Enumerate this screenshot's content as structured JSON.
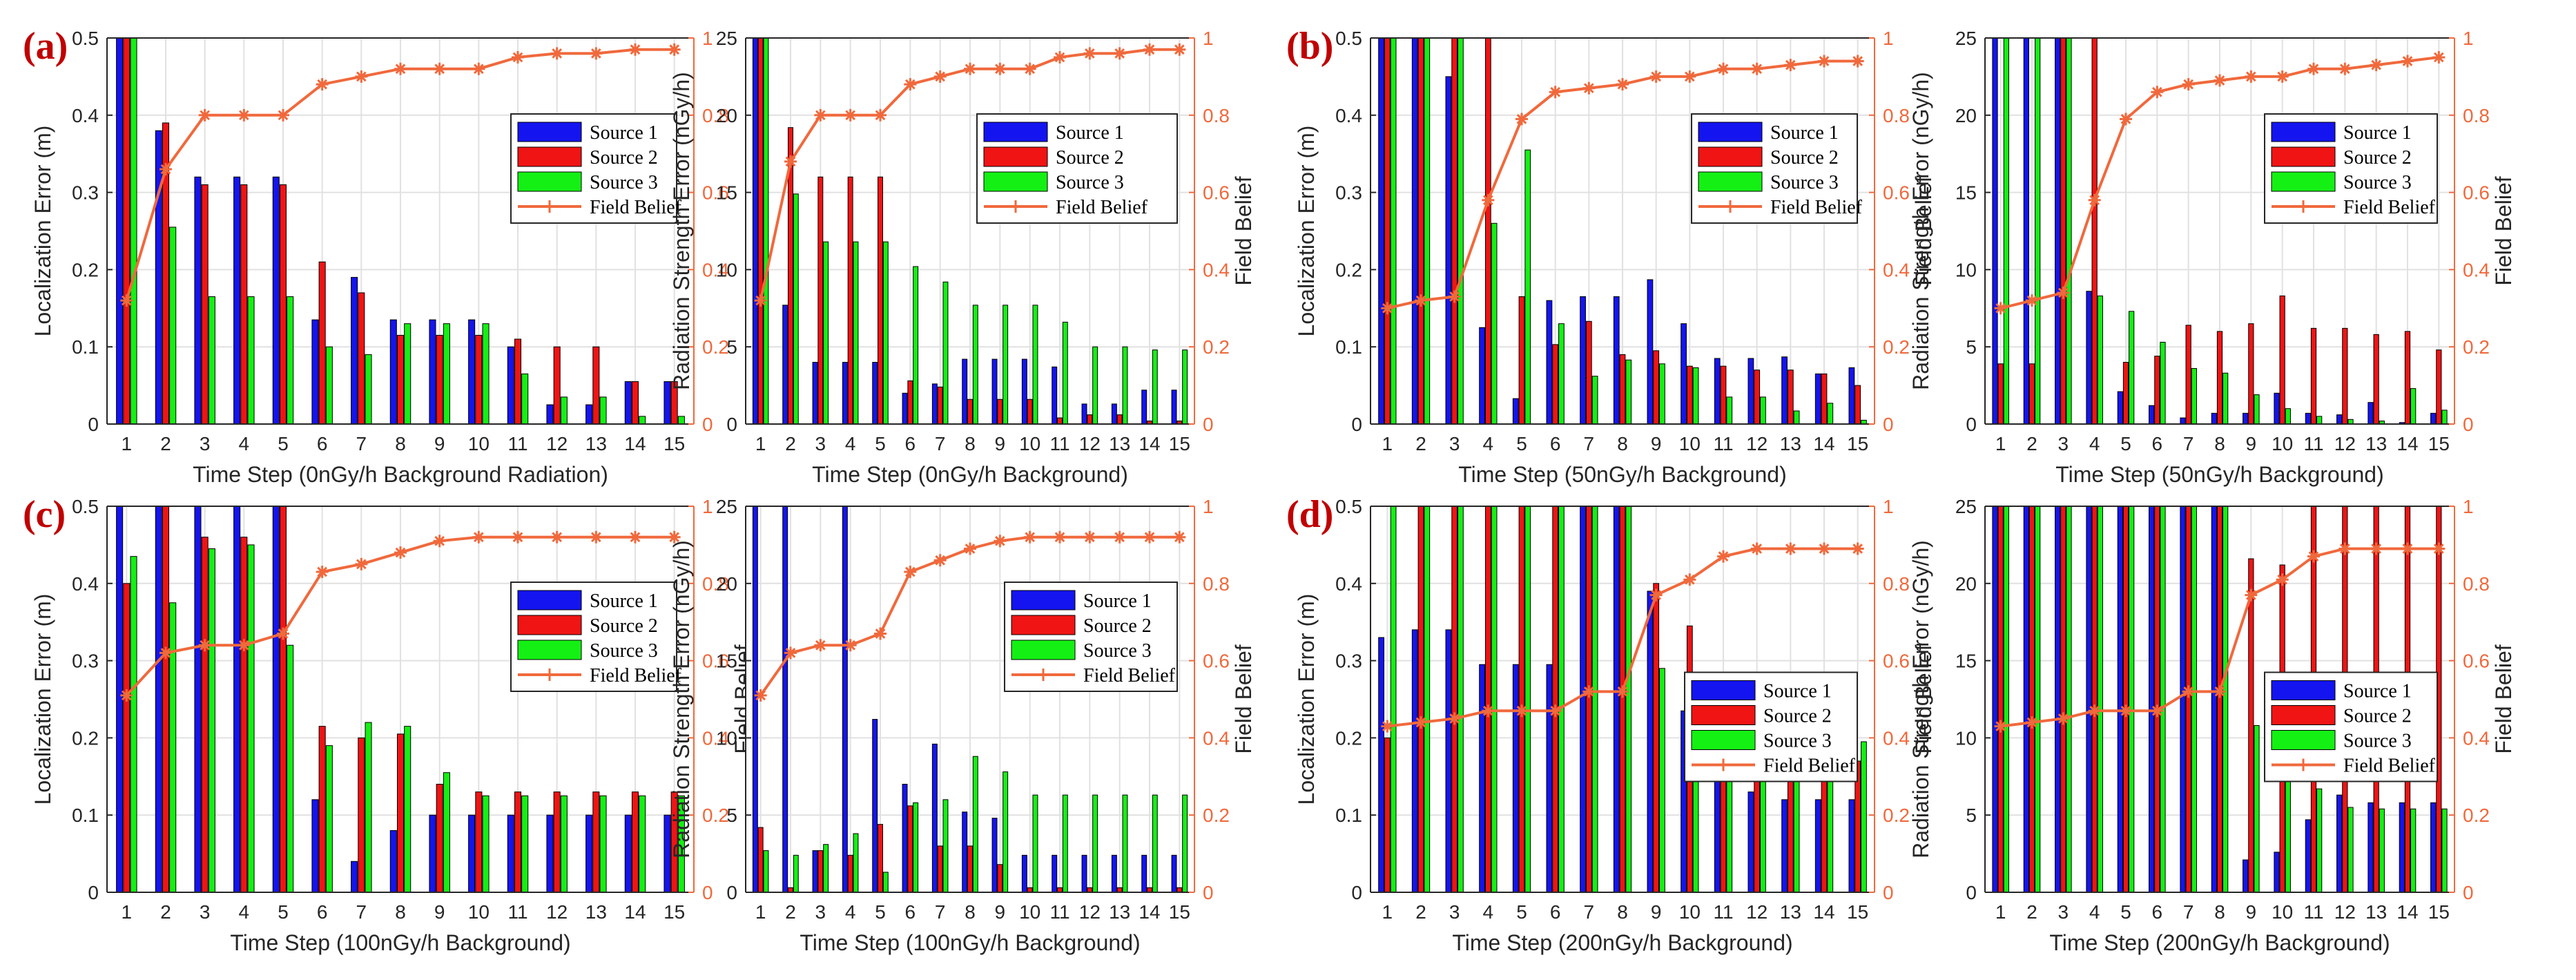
{
  "colors": {
    "source1": "#1414f0",
    "source2": "#f01414",
    "source3": "#14f014",
    "belief": "#f0693c",
    "grid": "#e1e1e1",
    "axis": "#262626",
    "tag": "#c00000"
  },
  "chart_data": [
    {
      "type": "bar",
      "panel_tag": "(a)",
      "categories": [
        "1",
        "2",
        "3",
        "4",
        "5",
        "6",
        "7",
        "8",
        "9",
        "10",
        "11",
        "12",
        "13",
        "14",
        "15"
      ],
      "series": [
        {
          "name": "Source 1",
          "values": [
            0.5,
            0.38,
            0.32,
            0.32,
            0.32,
            0.135,
            0.19,
            0.135,
            0.135,
            0.135,
            0.1,
            0.025,
            0.025,
            0.055,
            0.055
          ]
        },
        {
          "name": "Source 2",
          "values": [
            0.5,
            0.39,
            0.31,
            0.31,
            0.31,
            0.21,
            0.17,
            0.115,
            0.115,
            0.115,
            0.11,
            0.1,
            0.1,
            0.055,
            0.055
          ]
        },
        {
          "name": "Source 3",
          "values": [
            0.5,
            0.255,
            0.165,
            0.165,
            0.165,
            0.1,
            0.09,
            0.13,
            0.13,
            0.13,
            0.065,
            0.035,
            0.035,
            0.01,
            0.01
          ]
        }
      ],
      "line": {
        "name": "Field Belief",
        "values": [
          0.32,
          0.66,
          0.8,
          0.8,
          0.8,
          0.88,
          0.9,
          0.92,
          0.92,
          0.92,
          0.95,
          0.96,
          0.96,
          0.97,
          0.97
        ]
      },
      "xlabel": "Time Step (0nGy/h Background Radiation)",
      "ylabel": "Localization Error (m)",
      "ylabel_right": "",
      "ylim": [
        0,
        0.5
      ],
      "yticks": [
        "0",
        "0.1",
        "0.2",
        "0.3",
        "0.4",
        "0.5"
      ],
      "ylim_right": [
        0,
        1
      ],
      "yticks_right": [
        "0",
        "0.2",
        "0.4",
        "0.6",
        "0.8",
        "1"
      ],
      "grid": true,
      "legend": "top-right"
    },
    {
      "type": "bar",
      "panel_tag": "",
      "categories": [
        "1",
        "2",
        "3",
        "4",
        "5",
        "6",
        "7",
        "8",
        "9",
        "10",
        "11",
        "12",
        "13",
        "14",
        "15"
      ],
      "series": [
        {
          "name": "Source 1",
          "values": [
            25,
            7.7,
            4,
            4,
            4,
            2,
            2.6,
            4.2,
            4.2,
            4.2,
            3.7,
            1.3,
            1.3,
            2.2,
            2.2
          ]
        },
        {
          "name": "Source 2",
          "values": [
            25,
            19.2,
            16,
            16,
            16,
            2.8,
            2.4,
            1.6,
            1.6,
            1.6,
            0.4,
            0.6,
            0.6,
            0.2,
            0.2
          ]
        },
        {
          "name": "Source 3",
          "values": [
            25,
            14.9,
            11.8,
            11.8,
            11.8,
            10.2,
            9.2,
            7.7,
            7.7,
            7.7,
            6.6,
            5,
            5,
            4.8,
            4.8
          ]
        }
      ],
      "line": {
        "name": "Field Belief",
        "values": [
          0.32,
          0.68,
          0.8,
          0.8,
          0.8,
          0.88,
          0.9,
          0.92,
          0.92,
          0.92,
          0.95,
          0.96,
          0.96,
          0.97,
          0.97
        ]
      },
      "xlabel": "Time Step (0nGy/h Background)",
      "ylabel": "Radiation Strength Error (nGy/h)",
      "ylabel_right": "Field Belief",
      "ylim": [
        0,
        25
      ],
      "yticks": [
        "0",
        "5",
        "10",
        "15",
        "20",
        "25"
      ],
      "ylim_right": [
        0,
        1
      ],
      "yticks_right": [
        "0",
        "0.2",
        "0.4",
        "0.6",
        "0.8",
        "1"
      ],
      "grid": true,
      "legend": "top-right"
    },
    {
      "type": "bar",
      "panel_tag": "(b)",
      "categories": [
        "1",
        "2",
        "3",
        "4",
        "5",
        "6",
        "7",
        "8",
        "9",
        "10",
        "11",
        "12",
        "13",
        "14",
        "15"
      ],
      "series": [
        {
          "name": "Source 1",
          "values": [
            0.5,
            0.5,
            0.45,
            0.125,
            0.033,
            0.16,
            0.165,
            0.165,
            0.187,
            0.13,
            0.085,
            0.085,
            0.087,
            0.065,
            0.073
          ]
        },
        {
          "name": "Source 2",
          "values": [
            0.5,
            0.5,
            0.5,
            0.5,
            0.165,
            0.103,
            0.133,
            0.09,
            0.095,
            0.075,
            0.075,
            0.07,
            0.07,
            0.065,
            0.05
          ]
        },
        {
          "name": "Source 3",
          "values": [
            0.5,
            0.5,
            0.5,
            0.26,
            0.355,
            0.13,
            0.062,
            0.083,
            0.078,
            0.073,
            0.035,
            0.035,
            0.017,
            0.027,
            0.005
          ]
        }
      ],
      "line": {
        "name": "Field Belief",
        "values": [
          0.3,
          0.32,
          0.33,
          0.58,
          0.79,
          0.86,
          0.87,
          0.88,
          0.9,
          0.9,
          0.92,
          0.92,
          0.93,
          0.94,
          0.94
        ]
      },
      "xlabel": "Time Step (50nGy/h Background)",
      "ylabel": "Localization Error (m)",
      "ylabel_right": "Field Belief",
      "ylim": [
        0,
        0.5
      ],
      "yticks": [
        "0",
        "0.1",
        "0.2",
        "0.3",
        "0.4",
        "0.5"
      ],
      "ylim_right": [
        0,
        1
      ],
      "yticks_right": [
        "0",
        "0.2",
        "0.4",
        "0.6",
        "0.8",
        "1"
      ],
      "grid": true,
      "legend": "top-right"
    },
    {
      "type": "bar",
      "panel_tag": "",
      "categories": [
        "1",
        "2",
        "3",
        "4",
        "5",
        "6",
        "7",
        "8",
        "9",
        "10",
        "11",
        "12",
        "13",
        "14",
        "15"
      ],
      "series": [
        {
          "name": "Source 1",
          "values": [
            25,
            25,
            25,
            8.6,
            2.1,
            1.2,
            0.4,
            0.7,
            0.7,
            2,
            0.7,
            0.6,
            1.4,
            0.1,
            0.7
          ]
        },
        {
          "name": "Source 2",
          "values": [
            3.9,
            3.9,
            25,
            25,
            4,
            4.4,
            6.4,
            6,
            6.5,
            8.3,
            6.2,
            6.2,
            5.8,
            6,
            4.8
          ]
        },
        {
          "name": "Source 3",
          "values": [
            25,
            25,
            25,
            8.3,
            7.3,
            5.3,
            3.6,
            3.3,
            1.9,
            1,
            0.5,
            0.3,
            0.2,
            2.3,
            0.9
          ]
        }
      ],
      "line": {
        "name": "Field Belief",
        "values": [
          0.3,
          0.32,
          0.34,
          0.58,
          0.79,
          0.86,
          0.88,
          0.89,
          0.9,
          0.9,
          0.92,
          0.92,
          0.93,
          0.94,
          0.95
        ]
      },
      "xlabel": "Time Step (50nGy/h Background)",
      "ylabel": "Radiation Strength Error (nGy/h)",
      "ylabel_right": "Field Belief",
      "ylim": [
        0,
        25
      ],
      "yticks": [
        "0",
        "5",
        "10",
        "15",
        "20",
        "25"
      ],
      "ylim_right": [
        0,
        1
      ],
      "yticks_right": [
        "0",
        "0.2",
        "0.4",
        "0.6",
        "0.8",
        "1"
      ],
      "grid": true,
      "legend": "top-right"
    },
    {
      "type": "bar",
      "panel_tag": "(c)",
      "categories": [
        "1",
        "2",
        "3",
        "4",
        "5",
        "6",
        "7",
        "8",
        "9",
        "10",
        "11",
        "12",
        "13",
        "14",
        "15"
      ],
      "series": [
        {
          "name": "Source 1",
          "values": [
            0.5,
            0.5,
            0.5,
            0.5,
            0.5,
            0.12,
            0.04,
            0.08,
            0.1,
            0.1,
            0.1,
            0.1,
            0.1,
            0.1,
            0.1
          ]
        },
        {
          "name": "Source 2",
          "values": [
            0.4,
            0.5,
            0.46,
            0.46,
            0.5,
            0.215,
            0.2,
            0.205,
            0.14,
            0.13,
            0.13,
            0.13,
            0.13,
            0.13,
            0.13
          ]
        },
        {
          "name": "Source 3",
          "values": [
            0.435,
            0.375,
            0.445,
            0.45,
            0.32,
            0.19,
            0.22,
            0.215,
            0.155,
            0.125,
            0.125,
            0.125,
            0.125,
            0.125,
            0.125
          ]
        }
      ],
      "line": {
        "name": "Field Belief",
        "values": [
          0.51,
          0.62,
          0.64,
          0.64,
          0.67,
          0.83,
          0.85,
          0.88,
          0.91,
          0.92,
          0.92,
          0.92,
          0.92,
          0.92,
          0.92
        ]
      },
      "xlabel": "Time Step (100nGy/h Background)",
      "ylabel": "Localization Error (m)",
      "ylabel_right": "Field Belief",
      "ylim": [
        0,
        0.5
      ],
      "yticks": [
        "0",
        "0.1",
        "0.2",
        "0.3",
        "0.4",
        "0.5"
      ],
      "ylim_right": [
        0,
        1
      ],
      "yticks_right": [
        "0",
        "0.2",
        "0.4",
        "0.6",
        "0.8",
        "1"
      ],
      "grid": true,
      "legend": "top-right"
    },
    {
      "type": "bar",
      "panel_tag": "",
      "categories": [
        "1",
        "2",
        "3",
        "4",
        "5",
        "6",
        "7",
        "8",
        "9",
        "10",
        "11",
        "12",
        "13",
        "14",
        "15"
      ],
      "series": [
        {
          "name": "Source 1",
          "values": [
            25,
            25,
            2.7,
            25,
            11.2,
            7,
            9.6,
            5.2,
            4.8,
            2.4,
            2.4,
            2.4,
            2.4,
            2.4,
            2.4
          ]
        },
        {
          "name": "Source 2",
          "values": [
            4.2,
            0.3,
            2.7,
            2.4,
            4.4,
            5.6,
            3,
            3,
            1.8,
            0.3,
            0.3,
            0.3,
            0.3,
            0.3,
            0.3
          ]
        },
        {
          "name": "Source 3",
          "values": [
            2.7,
            2.4,
            3.1,
            3.8,
            1.3,
            5.8,
            6,
            8.8,
            7.8,
            6.3,
            6.3,
            6.3,
            6.3,
            6.3,
            6.3
          ]
        }
      ],
      "line": {
        "name": "Field Belief",
        "values": [
          0.51,
          0.62,
          0.64,
          0.64,
          0.67,
          0.83,
          0.86,
          0.89,
          0.91,
          0.92,
          0.92,
          0.92,
          0.92,
          0.92,
          0.92
        ]
      },
      "xlabel": "Time Step (100nGy/h Background)",
      "ylabel": "Radiation Strength Error (nGy/h)",
      "ylabel_right": "Field Belief",
      "ylim": [
        0,
        25
      ],
      "yticks": [
        "0",
        "5",
        "10",
        "15",
        "20",
        "25"
      ],
      "ylim_right": [
        0,
        1
      ],
      "yticks_right": [
        "0",
        "0.2",
        "0.4",
        "0.6",
        "0.8",
        "1"
      ],
      "grid": true,
      "legend": "top-right"
    },
    {
      "type": "bar",
      "panel_tag": "(d)",
      "categories": [
        "1",
        "2",
        "3",
        "4",
        "5",
        "6",
        "7",
        "8",
        "9",
        "10",
        "11",
        "12",
        "13",
        "14",
        "15"
      ],
      "series": [
        {
          "name": "Source 1",
          "values": [
            0.33,
            0.34,
            0.34,
            0.295,
            0.295,
            0.295,
            0.5,
            0.5,
            0.39,
            0.235,
            0.16,
            0.13,
            0.12,
            0.12,
            0.12
          ]
        },
        {
          "name": "Source 2",
          "values": [
            0.2,
            0.5,
            0.5,
            0.5,
            0.5,
            0.5,
            0.5,
            0.5,
            0.4,
            0.345,
            0.215,
            0.18,
            0.17,
            0.17,
            0.17
          ]
        },
        {
          "name": "Source 3",
          "values": [
            0.5,
            0.5,
            0.5,
            0.5,
            0.5,
            0.5,
            0.5,
            0.5,
            0.29,
            0.19,
            0.235,
            0.2,
            0.195,
            0.195,
            0.195
          ]
        }
      ],
      "line": {
        "name": "Field Belief",
        "values": [
          0.43,
          0.44,
          0.45,
          0.47,
          0.47,
          0.47,
          0.52,
          0.52,
          0.77,
          0.81,
          0.87,
          0.89,
          0.89,
          0.89,
          0.89
        ]
      },
      "xlabel": "Time Step (200nGy/h Background)",
      "ylabel": "Localization Error (m)",
      "ylabel_right": "Field Belief",
      "ylim": [
        0,
        0.5
      ],
      "yticks": [
        "0",
        "0.1",
        "0.2",
        "0.3",
        "0.4",
        "0.5"
      ],
      "ylim_right": [
        0,
        1
      ],
      "yticks_right": [
        "0",
        "0.2",
        "0.4",
        "0.6",
        "0.8",
        "1"
      ],
      "grid": true,
      "legend": "middle-right"
    },
    {
      "type": "bar",
      "panel_tag": "",
      "categories": [
        "1",
        "2",
        "3",
        "4",
        "5",
        "6",
        "7",
        "8",
        "9",
        "10",
        "11",
        "12",
        "13",
        "14",
        "15"
      ],
      "series": [
        {
          "name": "Source 1",
          "values": [
            25,
            25,
            25,
            25,
            25,
            25,
            25,
            25,
            2.1,
            2.6,
            4.7,
            6.3,
            5.8,
            5.8,
            5.8
          ]
        },
        {
          "name": "Source 2",
          "values": [
            25,
            25,
            25,
            25,
            25,
            25,
            25,
            25,
            21.6,
            21.2,
            25,
            25,
            25,
            25,
            25
          ]
        },
        {
          "name": "Source 3",
          "values": [
            25,
            25,
            25,
            25,
            25,
            25,
            25,
            25,
            10.8,
            10,
            6.7,
            5.5,
            5.4,
            5.4,
            5.4
          ]
        }
      ],
      "line": {
        "name": "Field Belief",
        "values": [
          0.43,
          0.44,
          0.45,
          0.47,
          0.47,
          0.47,
          0.52,
          0.52,
          0.77,
          0.81,
          0.87,
          0.89,
          0.89,
          0.89,
          0.89
        ]
      },
      "xlabel": "Time Step (200nGy/h Background)",
      "ylabel": "Radiation Strength Error (nGy/h)",
      "ylabel_right": "Field Belief",
      "ylim": [
        0,
        25
      ],
      "yticks": [
        "0",
        "5",
        "10",
        "15",
        "20",
        "25"
      ],
      "ylim_right": [
        0,
        1
      ],
      "yticks_right": [
        "0",
        "0.2",
        "0.4",
        "0.6",
        "0.8",
        "1"
      ],
      "grid": true,
      "legend": "middle-right"
    }
  ]
}
